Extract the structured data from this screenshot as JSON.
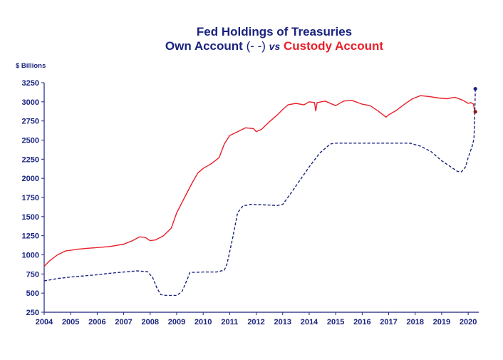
{
  "chart_data": {
    "type": "line",
    "title": "Fed Holdings of Treasuries",
    "subtitle_parts": {
      "own": "Own Account",
      "own_marker": " (- -) ",
      "vs": "vs",
      "custody": " Custody Account"
    },
    "ylabel": "$ Billions",
    "xlabel": "",
    "xlim": [
      2004,
      2020.4
    ],
    "ylim": [
      250,
      3250
    ],
    "x_ticks": [
      2004,
      2005,
      2006,
      2007,
      2008,
      2009,
      2010,
      2011,
      2012,
      2013,
      2014,
      2015,
      2016,
      2017,
      2018,
      2019,
      2020
    ],
    "y_ticks": [
      250,
      500,
      750,
      1000,
      1250,
      1500,
      1750,
      2000,
      2250,
      2500,
      2750,
      3000,
      3250
    ],
    "grid": false,
    "legend": "none",
    "series": [
      {
        "key": "custody",
        "color": "#e8202a",
        "style": "solid",
        "points": [
          [
            2004.0,
            850
          ],
          [
            2004.2,
            920
          ],
          [
            2004.5,
            1000
          ],
          [
            2004.8,
            1050
          ],
          [
            2005.0,
            1060
          ],
          [
            2005.3,
            1075
          ],
          [
            2005.6,
            1085
          ],
          [
            2006.0,
            1095
          ],
          [
            2006.5,
            1110
          ],
          [
            2007.0,
            1140
          ],
          [
            2007.3,
            1180
          ],
          [
            2007.6,
            1235
          ],
          [
            2007.8,
            1230
          ],
          [
            2008.0,
            1185
          ],
          [
            2008.2,
            1195
          ],
          [
            2008.5,
            1250
          ],
          [
            2008.8,
            1350
          ],
          [
            2009.0,
            1550
          ],
          [
            2009.3,
            1750
          ],
          [
            2009.6,
            1950
          ],
          [
            2009.8,
            2070
          ],
          [
            2010.0,
            2130
          ],
          [
            2010.3,
            2190
          ],
          [
            2010.6,
            2270
          ],
          [
            2010.8,
            2450
          ],
          [
            2011.0,
            2560
          ],
          [
            2011.3,
            2610
          ],
          [
            2011.6,
            2660
          ],
          [
            2011.9,
            2650
          ],
          [
            2012.0,
            2610
          ],
          [
            2012.2,
            2640
          ],
          [
            2012.5,
            2740
          ],
          [
            2012.8,
            2830
          ],
          [
            2013.0,
            2900
          ],
          [
            2013.2,
            2960
          ],
          [
            2013.5,
            2980
          ],
          [
            2013.8,
            2960
          ],
          [
            2014.0,
            3000
          ],
          [
            2014.2,
            2990
          ],
          [
            2014.25,
            2880
          ],
          [
            2014.3,
            2990
          ],
          [
            2014.6,
            3010
          ],
          [
            2015.0,
            2950
          ],
          [
            2015.3,
            3010
          ],
          [
            2015.6,
            3020
          ],
          [
            2016.0,
            2970
          ],
          [
            2016.3,
            2950
          ],
          [
            2016.6,
            2880
          ],
          [
            2016.9,
            2800
          ],
          [
            2017.0,
            2830
          ],
          [
            2017.3,
            2890
          ],
          [
            2017.6,
            2970
          ],
          [
            2017.9,
            3040
          ],
          [
            2018.2,
            3080
          ],
          [
            2018.5,
            3070
          ],
          [
            2018.9,
            3050
          ],
          [
            2019.2,
            3040
          ],
          [
            2019.5,
            3060
          ],
          [
            2019.8,
            3020
          ],
          [
            2020.0,
            2980
          ],
          [
            2020.1,
            2990
          ],
          [
            2020.2,
            2970
          ],
          [
            2020.25,
            2870
          ]
        ]
      },
      {
        "key": "own",
        "color": "#1a237e",
        "style": "dashed",
        "points": [
          [
            2004.0,
            660
          ],
          [
            2004.5,
            690
          ],
          [
            2005.0,
            710
          ],
          [
            2005.5,
            725
          ],
          [
            2006.0,
            740
          ],
          [
            2006.5,
            760
          ],
          [
            2007.0,
            775
          ],
          [
            2007.5,
            790
          ],
          [
            2007.9,
            780
          ],
          [
            2008.1,
            700
          ],
          [
            2008.25,
            570
          ],
          [
            2008.4,
            480
          ],
          [
            2008.6,
            470
          ],
          [
            2009.0,
            470
          ],
          [
            2009.2,
            520
          ],
          [
            2009.4,
            680
          ],
          [
            2009.5,
            770
          ],
          [
            2010.0,
            775
          ],
          [
            2010.5,
            775
          ],
          [
            2010.8,
            800
          ],
          [
            2010.9,
            880
          ],
          [
            2011.1,
            1200
          ],
          [
            2011.3,
            1550
          ],
          [
            2011.5,
            1640
          ],
          [
            2011.8,
            1660
          ],
          [
            2012.5,
            1650
          ],
          [
            2012.8,
            1645
          ],
          [
            2013.0,
            1660
          ],
          [
            2013.3,
            1800
          ],
          [
            2013.6,
            1950
          ],
          [
            2014.0,
            2150
          ],
          [
            2014.4,
            2330
          ],
          [
            2014.8,
            2450
          ],
          [
            2015.0,
            2460
          ],
          [
            2016.0,
            2460
          ],
          [
            2017.0,
            2460
          ],
          [
            2017.8,
            2460
          ],
          [
            2018.2,
            2420
          ],
          [
            2018.6,
            2350
          ],
          [
            2019.0,
            2230
          ],
          [
            2019.3,
            2160
          ],
          [
            2019.6,
            2090
          ],
          [
            2019.75,
            2085
          ],
          [
            2019.9,
            2150
          ],
          [
            2020.0,
            2270
          ],
          [
            2020.15,
            2420
          ],
          [
            2020.22,
            2520
          ],
          [
            2020.25,
            2860
          ],
          [
            2020.27,
            3170
          ]
        ]
      }
    ],
    "end_markers": [
      {
        "x": 2020.27,
        "y": 3170,
        "color": "#1a237e"
      },
      {
        "x": 2020.27,
        "y": 2870,
        "color": "#8b1a1a"
      }
    ]
  }
}
